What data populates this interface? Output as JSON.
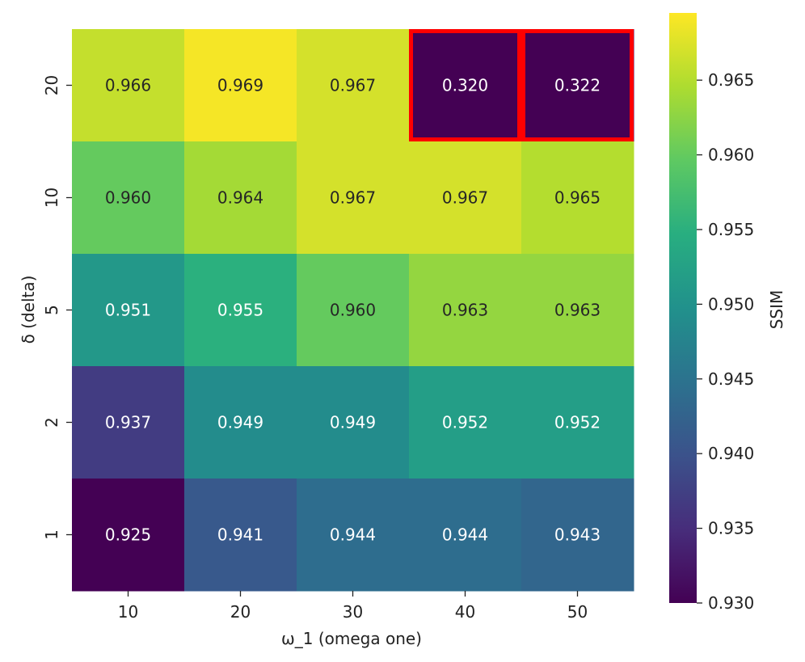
{
  "chart_data": {
    "type": "heatmap",
    "title": "",
    "xlabel": "ω_1 (omega one)",
    "ylabel": "δ (delta)",
    "x_categories": [
      "10",
      "20",
      "30",
      "40",
      "50"
    ],
    "y_categories": [
      "20",
      "10",
      "5",
      "2",
      "1"
    ],
    "values": [
      [
        0.966,
        0.969,
        0.967,
        0.32,
        0.322
      ],
      [
        0.96,
        0.964,
        0.967,
        0.967,
        0.965
      ],
      [
        0.951,
        0.955,
        0.96,
        0.963,
        0.963
      ],
      [
        0.937,
        0.949,
        0.949,
        0.952,
        0.952
      ],
      [
        0.925,
        0.941,
        0.944,
        0.944,
        0.943
      ]
    ],
    "value_format": "3 decimals",
    "colormap": "viridis",
    "color_range": [
      0.93,
      0.9695
    ],
    "colorbar": {
      "label": "SSIM",
      "ticks": [
        "0.930",
        "0.935",
        "0.940",
        "0.945",
        "0.950",
        "0.955",
        "0.960",
        "0.965"
      ],
      "tick_values": [
        0.93,
        0.935,
        0.94,
        0.945,
        0.95,
        0.955,
        0.96,
        0.965
      ]
    },
    "highlighted_cells": [
      {
        "row": "20",
        "col": "40"
      },
      {
        "row": "20",
        "col": "50"
      }
    ],
    "highlight_color": "#ff0000"
  }
}
